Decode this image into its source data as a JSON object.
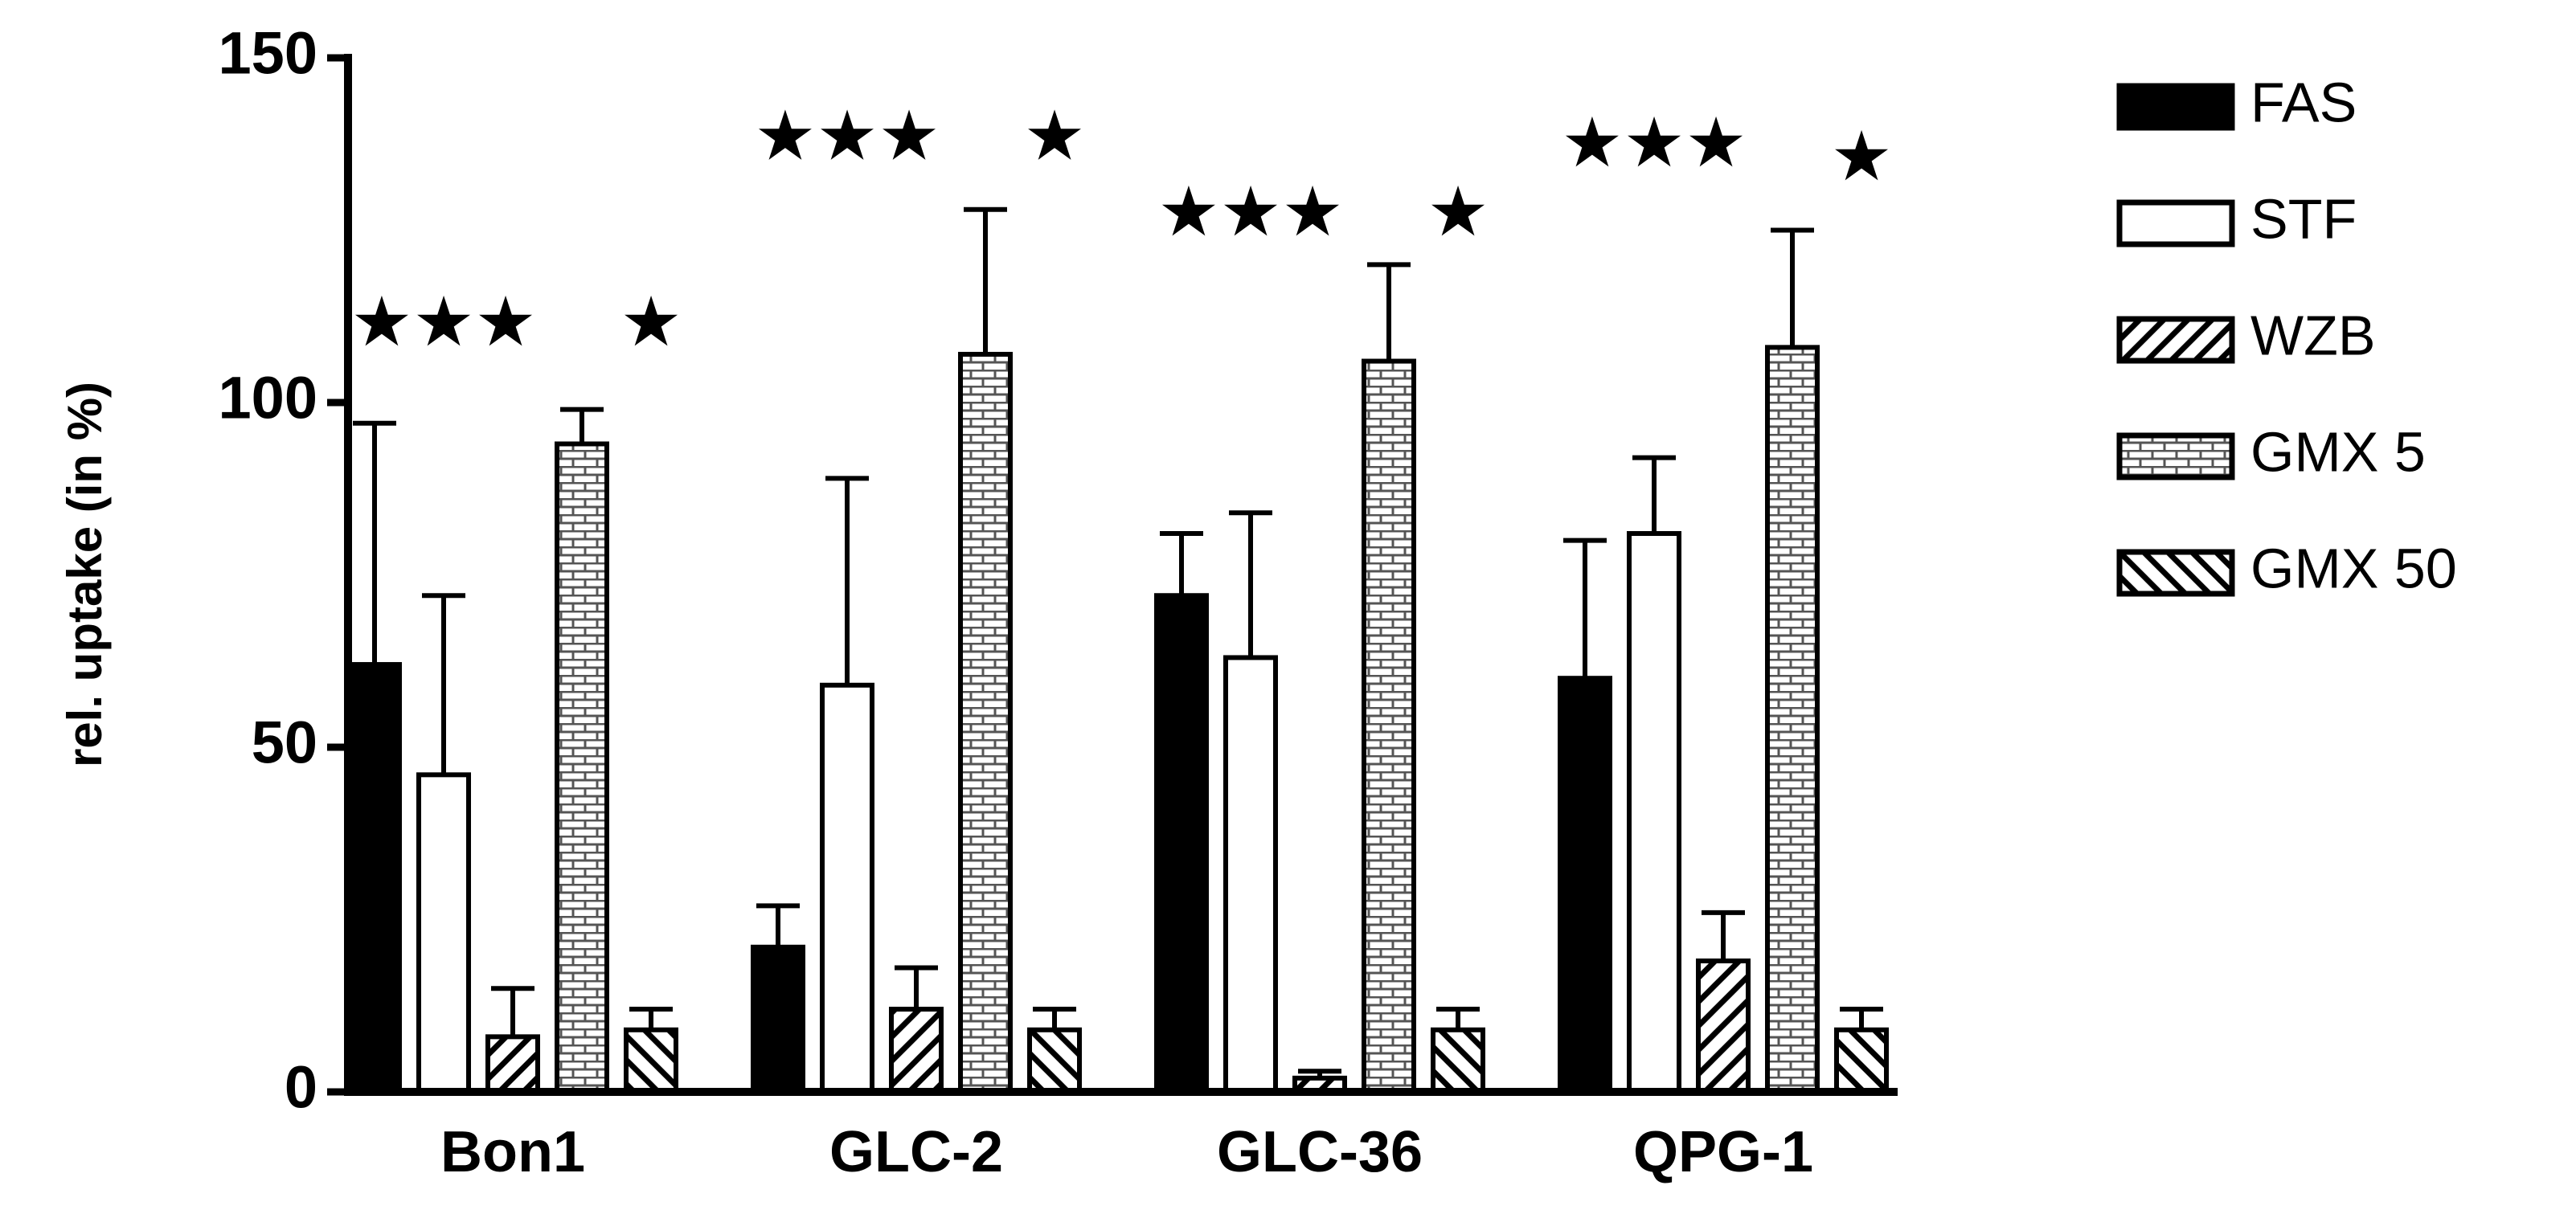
{
  "chart_data": {
    "type": "bar",
    "y_label": "rel. uptake (in %)",
    "categories": [
      "Bon1",
      "GLC-2",
      "GLC-36",
      "QPG-1"
    ],
    "series": [
      {
        "name": "FAS",
        "color": "#000000",
        "pattern": "solid",
        "values": [
          62,
          21,
          72,
          60
        ],
        "errors": [
          35,
          6,
          9,
          20
        ]
      },
      {
        "name": "STF",
        "color": "#ffffff",
        "pattern": "solid",
        "values": [
          46,
          59,
          63,
          81
        ],
        "errors": [
          26,
          30,
          21,
          11
        ]
      },
      {
        "name": "WZB",
        "color": "#ffffff",
        "pattern": "hatch-forward",
        "values": [
          8,
          12,
          2,
          19
        ],
        "errors": [
          7,
          6,
          1,
          7
        ]
      },
      {
        "name": "GMX 5",
        "color": "#ffffff",
        "pattern": "brick",
        "values": [
          94,
          107,
          106,
          108
        ],
        "errors": [
          5,
          21,
          14,
          17
        ]
      },
      {
        "name": "GMX 50",
        "color": "#ffffff",
        "pattern": "hatch-back",
        "values": [
          9,
          9,
          9,
          9
        ],
        "errors": [
          3,
          3,
          3,
          3
        ]
      }
    ],
    "annotations": [
      {
        "text": "★★★",
        "category": 0,
        "series": 1,
        "y": 111
      },
      {
        "text": "★",
        "category": 0,
        "series": 4,
        "y": 111
      },
      {
        "text": "★★★",
        "category": 1,
        "series": 1,
        "y": 138
      },
      {
        "text": "★",
        "category": 1,
        "series": 4,
        "y": 138
      },
      {
        "text": "★★★",
        "category": 2,
        "series": 1,
        "y": 127
      },
      {
        "text": "★",
        "category": 2,
        "series": 4,
        "y": 127
      },
      {
        "text": "★★★",
        "category": 3,
        "series": 1,
        "y": 137
      },
      {
        "text": "★",
        "category": 3,
        "series": 4,
        "y": 135
      }
    ],
    "ylim": [
      0,
      150
    ],
    "yticks": [
      0,
      50,
      100,
      150
    ]
  }
}
